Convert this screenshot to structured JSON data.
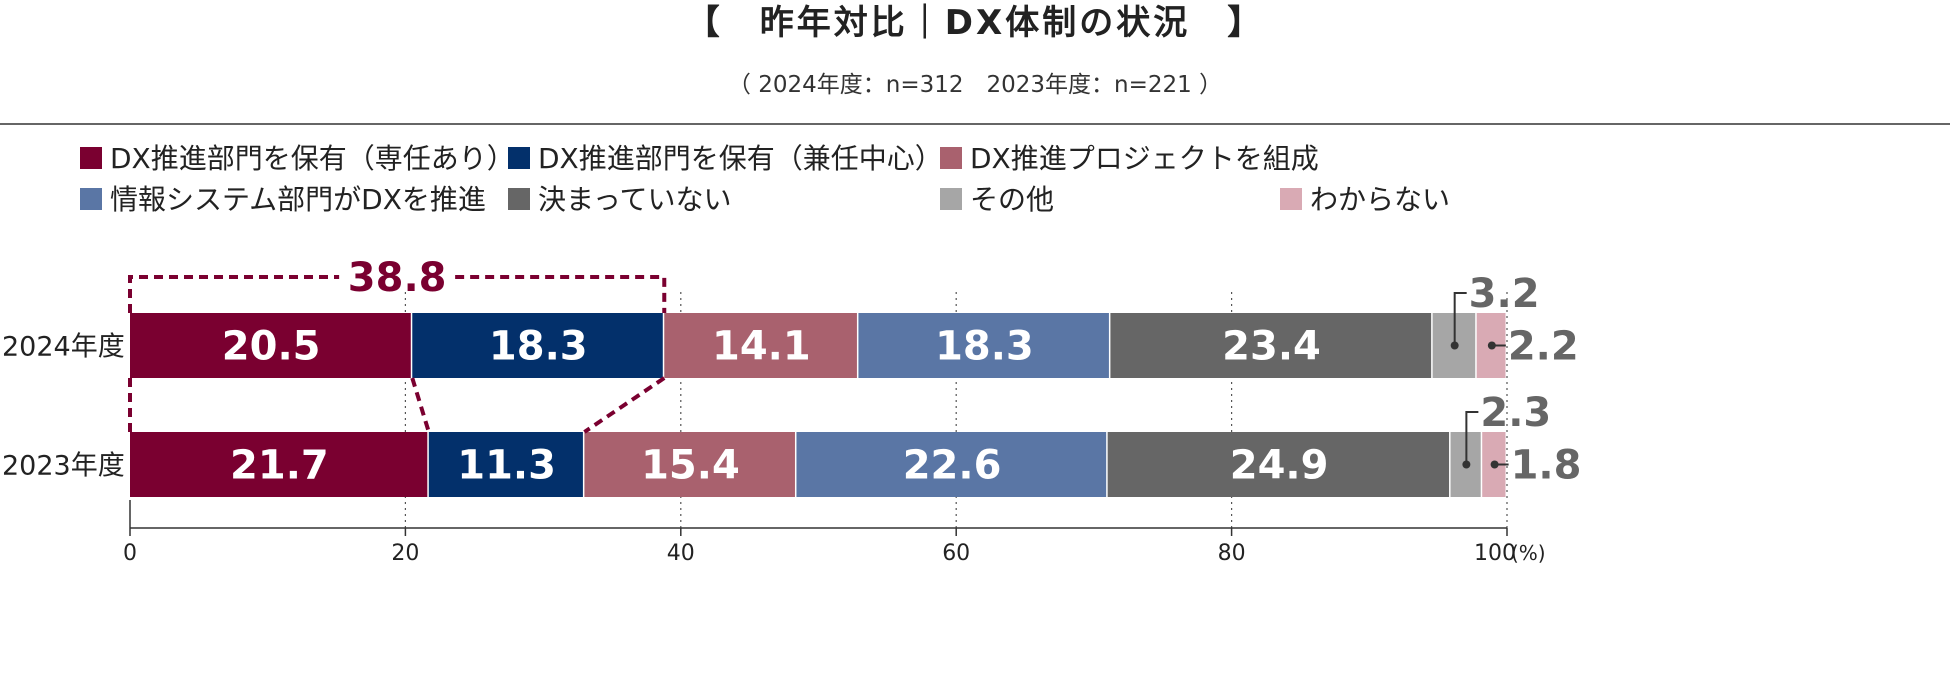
{
  "title": "【　昨年対比｜DX体制の状況　】",
  "subtitle": "（ 2024年度：n=312　2023年度：n=221 ）",
  "chart_data": {
    "type": "bar",
    "orientation": "horizontal",
    "stacked": true,
    "categories": [
      "2024年度",
      "2023年度"
    ],
    "series": [
      {
        "name": "DX推進部門を保有（専任あり）",
        "color": "#7a0030",
        "values": [
          20.5,
          21.7
        ]
      },
      {
        "name": "DX推進部門を保有（兼任中心）",
        "color": "#03306b",
        "values": [
          18.3,
          11.3
        ]
      },
      {
        "name": "DX推進プロジェクトを組成",
        "color": "#a9616e",
        "values": [
          14.1,
          15.4
        ]
      },
      {
        "name": "情報システム部門がDXを推進",
        "color": "#5a76a5",
        "values": [
          18.3,
          22.6
        ]
      },
      {
        "name": "決まっていない",
        "color": "#666666",
        "values": [
          23.4,
          24.9
        ]
      },
      {
        "name": "その他",
        "color": "#a6a6a6",
        "values": [
          3.2,
          2.3
        ]
      },
      {
        "name": "わからない",
        "color": "#d9aab4",
        "values": [
          2.2,
          1.8
        ]
      }
    ],
    "value_labels": [
      [
        "20.5",
        "18.3",
        "14.1",
        "18.3",
        "23.4",
        "3.2",
        "2.2"
      ],
      [
        "21.7",
        "11.3",
        "15.4",
        "22.6",
        "24.9",
        "2.3",
        "1.8"
      ]
    ],
    "xlim": [
      0,
      100
    ],
    "xticks": [
      "0",
      "20",
      "40",
      "60",
      "80",
      "100"
    ],
    "x_unit": "(%)",
    "grid": "vertical-dotted",
    "legend_position": "top",
    "highlight": {
      "label": "38.8",
      "value": 38.8,
      "color": "#7a0030"
    }
  }
}
